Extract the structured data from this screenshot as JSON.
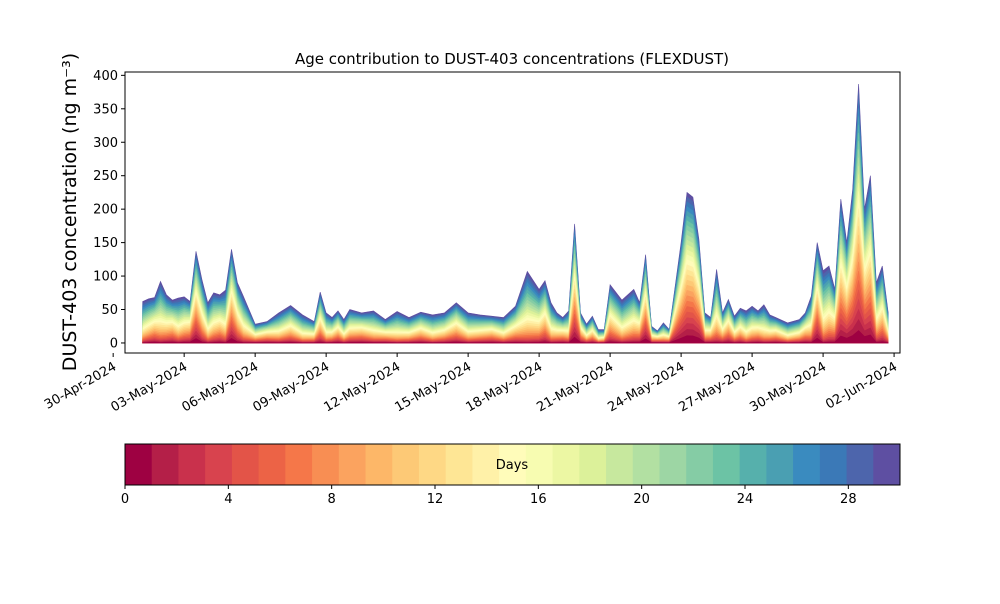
{
  "chart_data": {
    "type": "area",
    "title": "Age contribution to DUST-403 concentrations (FLEXDUST)",
    "xlabel": "",
    "ylabel": "DUST-403 concentration (ng m⁻³)",
    "xlim": [
      "2024-04-30T12:00",
      "2024-06-02T06:00"
    ],
    "ylim": [
      -15,
      405
    ],
    "x_tick_labels": [
      "30-Apr-2024",
      "03-May-2024",
      "06-May-2024",
      "09-May-2024",
      "12-May-2024",
      "15-May-2024",
      "18-May-2024",
      "21-May-2024",
      "24-May-2024",
      "27-May-2024",
      "30-May-2024",
      "02-Jun-2024"
    ],
    "y_tick_labels": [
      "0",
      "50",
      "100",
      "150",
      "200",
      "250",
      "300",
      "350",
      "400"
    ],
    "grid": false,
    "stacking": "cumulative by particle age, 0 days (bottom, dark red) to 30 days (top, dark blue)",
    "x": [
      "2024-05-01T06:00",
      "2024-05-01T12:00",
      "2024-05-01T18:00",
      "2024-05-02T00:00",
      "2024-05-02T06:00",
      "2024-05-02T12:00",
      "2024-05-02T18:00",
      "2024-05-03T00:00",
      "2024-05-03T06:00",
      "2024-05-03T12:00",
      "2024-05-03T18:00",
      "2024-05-04T00:00",
      "2024-05-04T06:00",
      "2024-05-04T12:00",
      "2024-05-04T18:00",
      "2024-05-05T00:00",
      "2024-05-05T06:00",
      "2024-05-05T12:00",
      "2024-05-06T00:00",
      "2024-05-06T12:00",
      "2024-05-07T00:00",
      "2024-05-07T12:00",
      "2024-05-08T00:00",
      "2024-05-08T12:00",
      "2024-05-08T18:00",
      "2024-05-09T00:00",
      "2024-05-09T06:00",
      "2024-05-09T12:00",
      "2024-05-09T18:00",
      "2024-05-10T00:00",
      "2024-05-10T12:00",
      "2024-05-11T00:00",
      "2024-05-11T12:00",
      "2024-05-12T00:00",
      "2024-05-12T12:00",
      "2024-05-13T00:00",
      "2024-05-13T12:00",
      "2024-05-14T00:00",
      "2024-05-14T12:00",
      "2024-05-15T00:00",
      "2024-05-15T12:00",
      "2024-05-16T00:00",
      "2024-05-16T12:00",
      "2024-05-17T00:00",
      "2024-05-17T12:00",
      "2024-05-18T00:00",
      "2024-05-18T06:00",
      "2024-05-18T12:00",
      "2024-05-18T18:00",
      "2024-05-19T00:00",
      "2024-05-19T06:00",
      "2024-05-19T12:00",
      "2024-05-19T18:00",
      "2024-05-20T00:00",
      "2024-05-20T06:00",
      "2024-05-20T12:00",
      "2024-05-20T18:00",
      "2024-05-21T00:00",
      "2024-05-21T12:00",
      "2024-05-22T00:00",
      "2024-05-22T06:00",
      "2024-05-22T12:00",
      "2024-05-22T18:00",
      "2024-05-23T00:00",
      "2024-05-23T06:00",
      "2024-05-23T12:00",
      "2024-05-24T00:00",
      "2024-05-24T06:00",
      "2024-05-24T12:00",
      "2024-05-24T18:00",
      "2024-05-25T00:00",
      "2024-05-25T06:00",
      "2024-05-25T12:00",
      "2024-05-25T18:00",
      "2024-05-26T00:00",
      "2024-05-26T06:00",
      "2024-05-26T12:00",
      "2024-05-26T18:00",
      "2024-05-27T00:00",
      "2024-05-27T06:00",
      "2024-05-27T12:00",
      "2024-05-27T18:00",
      "2024-05-28T00:00",
      "2024-05-28T12:00",
      "2024-05-29T00:00",
      "2024-05-29T06:00",
      "2024-05-29T12:00",
      "2024-05-29T18:00",
      "2024-05-30T00:00",
      "2024-05-30T06:00",
      "2024-05-30T12:00",
      "2024-05-30T18:00",
      "2024-05-31T00:00",
      "2024-05-31T06:00",
      "2024-05-31T12:00",
      "2024-05-31T18:00",
      "2024-06-01T00:00",
      "2024-06-01T06:00",
      "2024-06-01T12:00",
      "2024-06-01T18:00"
    ],
    "total": [
      62,
      66,
      68,
      92,
      72,
      64,
      67,
      69,
      62,
      137,
      95,
      60,
      75,
      72,
      79,
      140,
      90,
      70,
      28,
      32,
      45,
      56,
      42,
      32,
      76,
      45,
      38,
      48,
      35,
      50,
      45,
      48,
      35,
      47,
      38,
      46,
      42,
      45,
      60,
      45,
      42,
      40,
      38,
      55,
      107,
      80,
      93,
      60,
      45,
      38,
      48,
      178,
      45,
      28,
      40,
      20,
      20,
      87,
      64,
      80,
      60,
      132,
      25,
      18,
      30,
      20,
      150,
      225,
      218,
      155,
      45,
      38,
      110,
      45,
      65,
      40,
      52,
      48,
      55,
      48,
      57,
      42,
      38,
      30,
      35,
      45,
      70,
      150,
      108,
      115,
      80,
      215,
      150,
      230,
      387,
      200,
      250,
      90,
      115,
      45
    ],
    "age_bins_days": [
      0,
      30
    ],
    "colorbar": {
      "label": "Days",
      "tick_labels": [
        "0",
        "4",
        "8",
        "12",
        "16",
        "20",
        "24",
        "28"
      ],
      "colors": [
        "#9e0142",
        "#b41f48",
        "#c9314c",
        "#d8434e",
        "#e35448",
        "#ec6346",
        "#f57749",
        "#f88e53",
        "#fba35f",
        "#fdb768",
        "#fdc976",
        "#fed885",
        "#fee695",
        "#fff1a8",
        "#fffcba",
        "#f7fcb1",
        "#ecf7a3",
        "#dcf19a",
        "#c7e89e",
        "#b2e0a2",
        "#9dd6a4",
        "#85cca5",
        "#6cc3a5",
        "#56b0ac",
        "#4a9fb2",
        "#3a8bbf",
        "#3b79b7",
        "#4d65ac",
        "#5e4fa2"
      ]
    }
  }
}
